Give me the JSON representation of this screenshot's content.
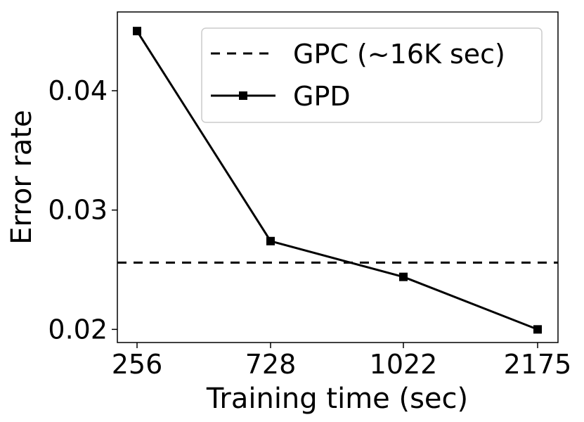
{
  "chart_data": {
    "type": "line",
    "title": "",
    "xlabel": "Training time (sec)",
    "ylabel": "Error rate",
    "categories": [
      "256",
      "728",
      "1022",
      "2175"
    ],
    "ylim": [
      0.0189,
      0.0466
    ],
    "yticks": [
      0.02,
      0.03,
      0.04
    ],
    "ytick_labels": [
      "0.02",
      "0.03",
      "0.04"
    ],
    "grid": false,
    "legend_position": "top-right",
    "series": [
      {
        "name": "GPD",
        "style": "solid",
        "marker": "square",
        "color": "#000000",
        "values": [
          0.045,
          0.0274,
          0.0244,
          0.02
        ]
      }
    ],
    "reference_lines": [
      {
        "name": "GPC (~16K sec)",
        "style": "dashed",
        "color": "#000000",
        "y": 0.0256
      }
    ]
  }
}
